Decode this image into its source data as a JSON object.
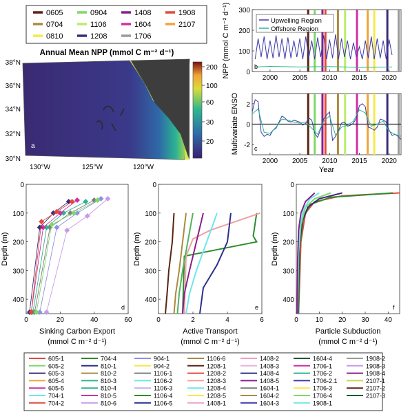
{
  "cruise_legend": {
    "items": [
      {
        "label": "0605",
        "color": "#5a2412"
      },
      {
        "label": "0904",
        "color": "#7fd86a"
      },
      {
        "label": "1408",
        "color": "#8a1e8c"
      },
      {
        "label": "1908",
        "color": "#e24a3b"
      },
      {
        "label": "0704",
        "color": "#a98b3e"
      },
      {
        "label": "1106",
        "color": "#b7ee6a"
      },
      {
        "label": "1604",
        "color": "#cf2fa6"
      },
      {
        "label": "2107",
        "color": "#f2a435"
      },
      {
        "label": "0810",
        "color": "#f4ea4a"
      },
      {
        "label": "1208",
        "color": "#3c2a7a"
      },
      {
        "label": "1706",
        "color": "#9a9a9a"
      }
    ]
  },
  "map": {
    "title": "Annual Mean NPP (mmol C m⁻² d⁻¹)",
    "panel": "a",
    "lat_labels": [
      "38°N",
      "36°N",
      "34°N",
      "32°N",
      "30°N"
    ],
    "lon_labels": [
      "130°W",
      "125°W",
      "120°W"
    ],
    "colorbar_ticks": [
      "200",
      "100",
      "60",
      "30",
      "20"
    ]
  },
  "chart_data": [
    {
      "type": "line",
      "panel": "b",
      "ylabel": "NPP (mmol C m⁻² d⁻¹)",
      "xlim": [
        1997,
        2022
      ],
      "ylim": [
        0,
        300
      ],
      "yticks": [
        0,
        100,
        200,
        300
      ],
      "xticks": [
        2000,
        2005,
        2010,
        2015,
        2020
      ],
      "legend_position": "top-center",
      "series": [
        {
          "name": "Upwelling Region",
          "color": "#3d3aa8",
          "x": [
            1997.5,
            1998,
            1998.5,
            1999,
            1999.5,
            2000,
            2000.5,
            2001,
            2001.5,
            2002,
            2002.5,
            2003,
            2003.5,
            2004,
            2004.5,
            2005,
            2005.5,
            2006,
            2006.5,
            2007,
            2007.5,
            2008,
            2008.5,
            2009,
            2009.5,
            2010,
            2010.5,
            2011,
            2011.5,
            2012,
            2012.5,
            2013,
            2013.5,
            2014,
            2014.5,
            2015,
            2015.5,
            2016,
            2016.5,
            2017,
            2017.5,
            2018,
            2018.5,
            2019,
            2019.5,
            2020,
            2020.5
          ],
          "y": [
            60,
            160,
            70,
            170,
            60,
            150,
            65,
            175,
            70,
            160,
            60,
            165,
            65,
            150,
            70,
            160,
            60,
            170,
            65,
            150,
            60,
            165,
            70,
            175,
            60,
            155,
            65,
            180,
            60,
            160,
            70,
            150,
            60,
            140,
            70,
            120,
            60,
            150,
            65,
            170,
            60,
            160,
            65,
            150,
            60,
            155,
            80
          ]
        },
        {
          "name": "Offshore Region",
          "color": "#2bb58f",
          "x": [
            1997.5,
            2000,
            2005,
            2010,
            2015,
            2020.5
          ],
          "y": [
            22,
            25,
            22,
            24,
            20,
            22
          ]
        }
      ],
      "cruise_markers": [
        2006.4,
        2007.5,
        2008.8,
        2009.3,
        2011.4,
        2012.6,
        2014.6,
        2016.4,
        2017.5,
        2019.7,
        2021.6
      ]
    },
    {
      "type": "line",
      "panel": "c",
      "ylabel": "Multivariate ENSO",
      "xlabel": "Year",
      "xlim": [
        1997,
        2022
      ],
      "ylim": [
        -3,
        3
      ],
      "yticks": [
        -2,
        0,
        2
      ],
      "xticks": [
        2000,
        2005,
        2010,
        2015,
        2020
      ],
      "series": [
        {
          "color": "#3d3aa8",
          "x": [
            1997,
            1997.5,
            1998,
            1998.5,
            1999,
            1999.5,
            2000,
            2000.5,
            2001,
            2001.5,
            2002,
            2002.5,
            2003,
            2003.5,
            2004,
            2004.5,
            2005,
            2005.5,
            2006,
            2006.5,
            2007,
            2007.5,
            2008,
            2008.5,
            2009,
            2009.5,
            2010,
            2010.5,
            2011,
            2011.5,
            2012,
            2012.5,
            2013,
            2013.5,
            2014,
            2014.5,
            2015,
            2015.5,
            2016,
            2016.5,
            2017,
            2017.5,
            2018,
            2018.5,
            2019,
            2019.5,
            2020,
            2020.5,
            2021,
            2021.5,
            2022
          ],
          "y": [
            1.2,
            2.4,
            2.2,
            -0.8,
            -1.2,
            -1.0,
            -1.1,
            -0.6,
            -0.4,
            0.2,
            0.8,
            0.6,
            0.3,
            0.2,
            0.4,
            0.3,
            0.2,
            -0.1,
            0.1,
            0.6,
            0.4,
            -0.9,
            -1.3,
            -0.5,
            0.5,
            0.9,
            1.2,
            -1.6,
            -1.2,
            -0.6,
            0.1,
            0.2,
            -0.2,
            -0.1,
            0.1,
            0.6,
            1.8,
            2.0,
            1.7,
            -0.3,
            -0.4,
            -0.6,
            -0.3,
            0.5,
            0.4,
            0.2,
            -0.6,
            -1.1,
            -1.0,
            -1.2,
            -1.5
          ]
        },
        {
          "color": "#2bb58f",
          "x": [
            1997,
            1998,
            1999,
            2000,
            2001,
            2002,
            2003,
            2004,
            2005,
            2006,
            2007,
            2008,
            2009,
            2010,
            2011,
            2012,
            2013,
            2014,
            2015,
            2016,
            2017,
            2018,
            2019,
            2020,
            2021,
            2022
          ],
          "y": [
            1.0,
            1.5,
            -0.8,
            -0.9,
            -0.3,
            0.5,
            0.4,
            0.2,
            0.1,
            0.2,
            -0.4,
            -1.0,
            0.3,
            0.8,
            -1.1,
            -0.3,
            -0.1,
            0.3,
            1.4,
            1.1,
            -0.2,
            0.0,
            0.3,
            -0.7,
            -1.0,
            -1.2
          ]
        }
      ],
      "cruise_markers": [
        2006.4,
        2007.5,
        2008.8,
        2009.3,
        2011.4,
        2012.6,
        2014.6,
        2016.4,
        2017.5,
        2019.7,
        2021.6
      ]
    },
    {
      "type": "line",
      "panel": "d",
      "xlabel": "Sinking Carbon Export",
      "xlabel2": "(mmol C m⁻² d⁻¹)",
      "ylabel": "Depth (m)",
      "xlim": [
        0,
        60
      ],
      "ylim": [
        0,
        450
      ],
      "xticks": [
        0,
        20,
        40,
        60
      ],
      "yticks": [
        0,
        100,
        200,
        300,
        400
      ],
      "series": [
        {
          "color": "#8f8fe6",
          "x": [
            8,
            18,
            30,
            44
          ],
          "y": [
            445,
            150,
            100,
            50
          ]
        },
        {
          "color": "#7c7c7c",
          "x": [
            5,
            14,
            26,
            40
          ],
          "y": [
            445,
            150,
            100,
            55
          ]
        },
        {
          "color": "#2bb58f",
          "x": [
            4,
            12,
            22,
            35
          ],
          "y": [
            445,
            150,
            100,
            60
          ]
        },
        {
          "color": "#cf2fa6",
          "x": [
            3,
            10,
            20,
            30
          ],
          "y": [
            445,
            150,
            100,
            55
          ]
        },
        {
          "color": "#3c2a7a",
          "x": [
            2,
            8,
            16,
            25
          ],
          "y": [
            445,
            150,
            100,
            60
          ]
        },
        {
          "color": "#c79be8",
          "x": [
            12,
            24,
            36,
            48
          ],
          "y": [
            445,
            160,
            110,
            50
          ]
        },
        {
          "color": "#7fd86a",
          "x": [
            6,
            15,
            28,
            42
          ],
          "y": [
            445,
            140,
            100,
            55
          ]
        },
        {
          "color": "#e24a3b",
          "x": [
            3,
            9,
            18,
            27
          ],
          "y": [
            445,
            130,
            95,
            60
          ]
        }
      ]
    },
    {
      "type": "line",
      "panel": "e",
      "xlabel": "Active Transport",
      "xlabel2": "(mmol C m⁻² d⁻¹)",
      "ylabel": "Depth (m)",
      "xlim": [
        0,
        6
      ],
      "ylim": [
        0,
        450
      ],
      "xticks": [
        0,
        2,
        4,
        6
      ],
      "yticks": [
        0,
        100,
        200,
        300,
        400
      ],
      "series": [
        {
          "color": "#2e8b2e",
          "x": [
            5.7,
            5.5,
            5.7,
            1.5,
            1.4
          ],
          "y": [
            100,
            180,
            200,
            250,
            450
          ]
        },
        {
          "color": "#f0a0a0",
          "x": [
            5.9,
            3.0,
            2.0,
            1.6,
            1.5
          ],
          "y": [
            100,
            160,
            190,
            250,
            450
          ]
        },
        {
          "color": "#2a2f8a",
          "x": [
            4.2,
            4.0,
            3.4,
            2.6,
            2.4
          ],
          "y": [
            100,
            200,
            280,
            360,
            450
          ]
        },
        {
          "color": "#6ee6ea",
          "x": [
            3.4,
            2.8,
            2.2,
            1.8,
            1.6
          ],
          "y": [
            100,
            200,
            300,
            380,
            450
          ]
        },
        {
          "color": "#8a1e8c",
          "x": [
            2.6,
            2.2,
            1.8,
            1.5,
            1.4
          ],
          "y": [
            100,
            200,
            300,
            380,
            450
          ]
        },
        {
          "color": "#5a2412",
          "x": [
            0.9,
            0.8,
            0.6,
            0.5,
            0.4
          ],
          "y": [
            100,
            200,
            300,
            380,
            450
          ]
        },
        {
          "color": "#a98b3e",
          "x": [
            1.6,
            1.4,
            1.2,
            1.0,
            0.9
          ],
          "y": [
            100,
            200,
            300,
            380,
            450
          ]
        },
        {
          "color": "#4fb55e",
          "x": [
            2.0,
            1.7,
            1.4,
            1.2,
            1.1
          ],
          "y": [
            100,
            200,
            300,
            380,
            450
          ]
        }
      ]
    },
    {
      "type": "line",
      "panel": "f",
      "xlabel": "Particle Subduction",
      "xlabel2": "(mmol C m⁻² d⁻¹)",
      "ylabel": "Depth (m)",
      "xlim": [
        0,
        45
      ],
      "ylim": [
        0,
        450
      ],
      "xticks": [
        0,
        10,
        20,
        30,
        40
      ],
      "yticks": [
        0,
        100,
        200,
        300,
        400
      ],
      "series": [
        {
          "color": "#e24a3b",
          "x": [
            45,
            20,
            8,
            4,
            2,
            1
          ],
          "y": [
            30,
            40,
            60,
            100,
            200,
            450
          ]
        },
        {
          "color": "#2e8b2e",
          "x": [
            42,
            15,
            6,
            3,
            1.5,
            1
          ],
          "y": [
            30,
            45,
            70,
            120,
            220,
            450
          ]
        },
        {
          "color": "#3c2a7a",
          "x": [
            20,
            10,
            5,
            2.5,
            1.2,
            0.8
          ],
          "y": [
            30,
            50,
            80,
            130,
            230,
            450
          ]
        },
        {
          "color": "#7fd86a",
          "x": [
            15,
            8,
            4,
            2,
            1,
            0.6
          ],
          "y": [
            30,
            50,
            80,
            140,
            240,
            450
          ]
        },
        {
          "color": "#6ee6ea",
          "x": [
            10,
            6,
            3,
            1.5,
            0.8,
            0.5
          ],
          "y": [
            30,
            50,
            90,
            150,
            250,
            450
          ]
        },
        {
          "color": "#8a1e8c",
          "x": [
            8,
            4,
            2,
            1,
            0.6,
            0.4
          ],
          "y": [
            30,
            60,
            100,
            160,
            260,
            450
          ]
        }
      ]
    }
  ],
  "bottom_legend": {
    "items": [
      {
        "label": "605-1",
        "color": "#e24a3b"
      },
      {
        "label": "704-4",
        "color": "#2e8b2e"
      },
      {
        "label": "904-1",
        "color": "#8f8fe6"
      },
      {
        "label": "1106-6",
        "color": "#a98b3e"
      },
      {
        "label": "1408-2",
        "color": "#f0a0c8"
      },
      {
        "label": "1604-4",
        "color": "#1f5a2e"
      },
      {
        "label": "1908-2",
        "color": "#9a9a9a"
      },
      {
        "label": "605-2",
        "color": "#7fd86a"
      },
      {
        "label": "810-1",
        "color": "#2a2f8a"
      },
      {
        "label": "904-2",
        "color": "#f4ea4a"
      },
      {
        "label": "1208-1",
        "color": "#5a2412"
      },
      {
        "label": "1408-3",
        "color": "#e6b3e0"
      },
      {
        "label": "1706-1",
        "color": "#cf2fa6"
      },
      {
        "label": "1908-3",
        "color": "#c79be8"
      },
      {
        "label": "605-3",
        "color": "#3c2a7a"
      },
      {
        "label": "810-2",
        "color": "#a98b3e"
      },
      {
        "label": "1106-1",
        "color": "#7c7c7c"
      },
      {
        "label": "1208-2",
        "color": "#e24a3b"
      },
      {
        "label": "1408-4",
        "color": "#2a2f8a"
      },
      {
        "label": "1706-2",
        "color": "#2bb58f"
      },
      {
        "label": "1908-4",
        "color": "#8a1e8c"
      },
      {
        "label": "605-4",
        "color": "#f2a435"
      },
      {
        "label": "810-3",
        "color": "#2bb58f"
      },
      {
        "label": "1106-2",
        "color": "#6ee6ea"
      },
      {
        "label": "1208-3",
        "color": "#f0a0a0"
      },
      {
        "label": "1408-5",
        "color": "#8a1e8c"
      },
      {
        "label": "1706-2.1",
        "color": "#3d3aa8"
      },
      {
        "label": "2107-1",
        "color": "#c8d84a"
      },
      {
        "label": "605-5",
        "color": "#cf2fa6"
      },
      {
        "label": "810-4",
        "color": "#2bb58f"
      },
      {
        "label": "1106-3",
        "color": "#b7b7f0"
      },
      {
        "label": "1208-4",
        "color": "#6ee6ea"
      },
      {
        "label": "1604-1",
        "color": "#7c7c7c"
      },
      {
        "label": "1706-3",
        "color": "#f4ea4a"
      },
      {
        "label": "2107-2",
        "color": "#5a2412"
      },
      {
        "label": "704-1",
        "color": "#6ee6ea"
      },
      {
        "label": "810-5",
        "color": "#cf2fa6"
      },
      {
        "label": "1106-4",
        "color": "#2e8b2e"
      },
      {
        "label": "1208-5",
        "color": "#f4ea4a"
      },
      {
        "label": "1604-2",
        "color": "#a98b3e"
      },
      {
        "label": "1706-4",
        "color": "#7fd86a"
      },
      {
        "label": "2107-3",
        "color": "#1f5a2e"
      },
      {
        "label": "704-2",
        "color": "#e24a3b"
      },
      {
        "label": "810-6",
        "color": "#c79be8"
      },
      {
        "label": "1106-5",
        "color": "#2a2f8a"
      },
      {
        "label": "1408-1",
        "color": "#f0a0c8"
      },
      {
        "label": "1604-3",
        "color": "#3d3aa8"
      },
      {
        "label": "1908-1",
        "color": "#6ee6ea"
      }
    ]
  },
  "year_label": "Year"
}
